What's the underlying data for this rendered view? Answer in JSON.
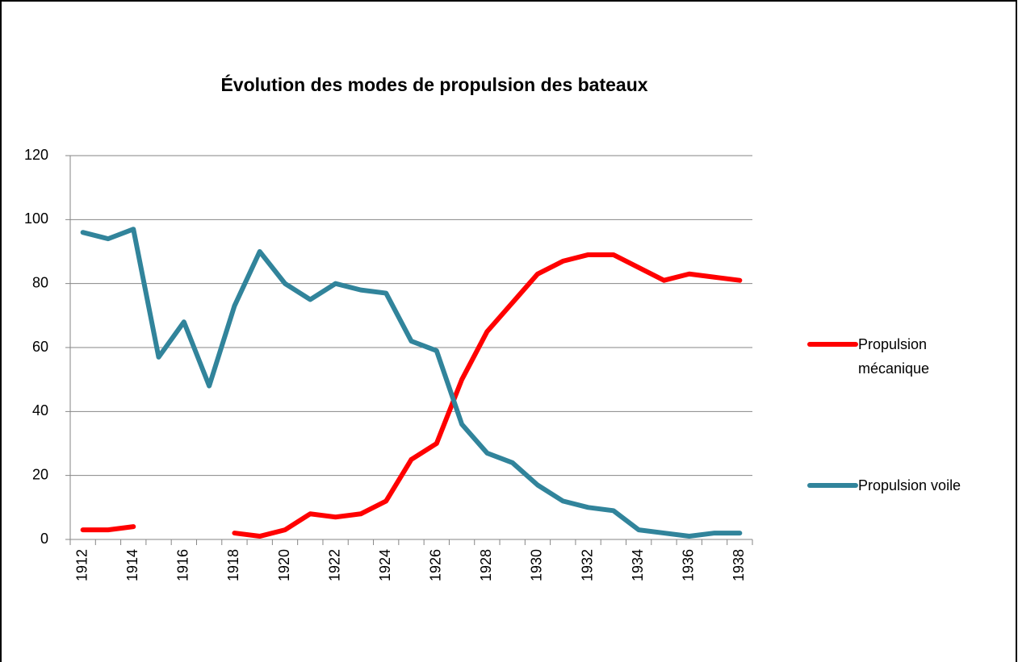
{
  "chart_data": {
    "type": "line",
    "title": "Évolution des modes de propulsion des bateaux",
    "categories": [
      1912,
      null,
      1914,
      null,
      1916,
      null,
      1918,
      null,
      1920,
      null,
      1922,
      null,
      1924,
      null,
      1926,
      null,
      1928,
      null,
      1930,
      null,
      1932,
      null,
      1934,
      null,
      1936,
      null,
      1938
    ],
    "series": [
      {
        "name": "Propulsion mécanique",
        "color": "#ff0000",
        "values": [
          3,
          3,
          4,
          null,
          null,
          null,
          2,
          1,
          3,
          8,
          7,
          8,
          12,
          25,
          30,
          50,
          65,
          74,
          83,
          87,
          89,
          89,
          85,
          81,
          83,
          82,
          81
        ]
      },
      {
        "name": "Propulsion voile",
        "color": "#31849b",
        "values": [
          96,
          94,
          97,
          57,
          68,
          48,
          73,
          90,
          80,
          75,
          80,
          78,
          77,
          62,
          59,
          36,
          27,
          24,
          17,
          12,
          10,
          9,
          3,
          2,
          1,
          2,
          2
        ]
      }
    ],
    "ylim": [
      0,
      120
    ],
    "yticks": [
      0,
      20,
      40,
      60,
      80,
      100,
      120
    ],
    "grid": true,
    "legend": "right"
  }
}
